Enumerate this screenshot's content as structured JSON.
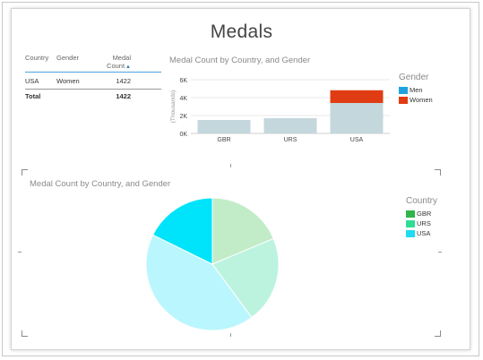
{
  "report": {
    "title": "Medals"
  },
  "table": {
    "headers": [
      "Country",
      "Gender",
      "Medal Count"
    ],
    "rows": [
      {
        "country": "USA",
        "gender": "Women",
        "count": "1422"
      }
    ],
    "total": {
      "label": "Total",
      "count": "1422"
    }
  },
  "bar_chart": {
    "title": "Medal Count by Country, and Gender",
    "ylabel": "(Thousands)",
    "legend_title": "Gender",
    "legend": [
      {
        "name": "Men",
        "color": "#1fa3e0"
      },
      {
        "name": "Women",
        "color": "#e03c13"
      }
    ]
  },
  "pie_chart": {
    "title": "Medal Count by Country, and Gender",
    "legend_title": "Country",
    "legend": [
      {
        "name": "GBR",
        "color": "#2fb54a"
      },
      {
        "name": "URS",
        "color": "#2fdc96"
      },
      {
        "name": "USA",
        "color": "#1fdcf0"
      }
    ]
  },
  "chart_data": [
    {
      "type": "bar",
      "title": "Medal Count by Country, and Gender",
      "categories": [
        "GBR",
        "URS",
        "USA"
      ],
      "series": [
        {
          "name": "Men",
          "values": [
            1500,
            1700,
            3400
          ],
          "color": "#c4d7dc",
          "highlight_color": "#1fa3e0"
        },
        {
          "name": "Women",
          "values": [
            0,
            0,
            1422
          ],
          "color": "#e03c13"
        }
      ],
      "ylabel": "(Thousands)",
      "yticks": [
        "0K",
        "2K",
        "4K",
        "6K"
      ],
      "ylim": [
        0,
        6000
      ],
      "stacked": true,
      "legend_position": "right"
    },
    {
      "type": "pie",
      "title": "Medal Count by Country, and Gender",
      "slices": [
        {
          "name": "GBR",
          "value": 1500,
          "color": "#c2ecc8"
        },
        {
          "name": "URS",
          "value": 1700,
          "color": "#bcf3df"
        },
        {
          "name": "USA",
          "value": 4822,
          "color": "#baf6fd",
          "highlight_value": 1422,
          "highlight_color": "#00e4fb"
        }
      ],
      "legend_position": "right"
    }
  ]
}
